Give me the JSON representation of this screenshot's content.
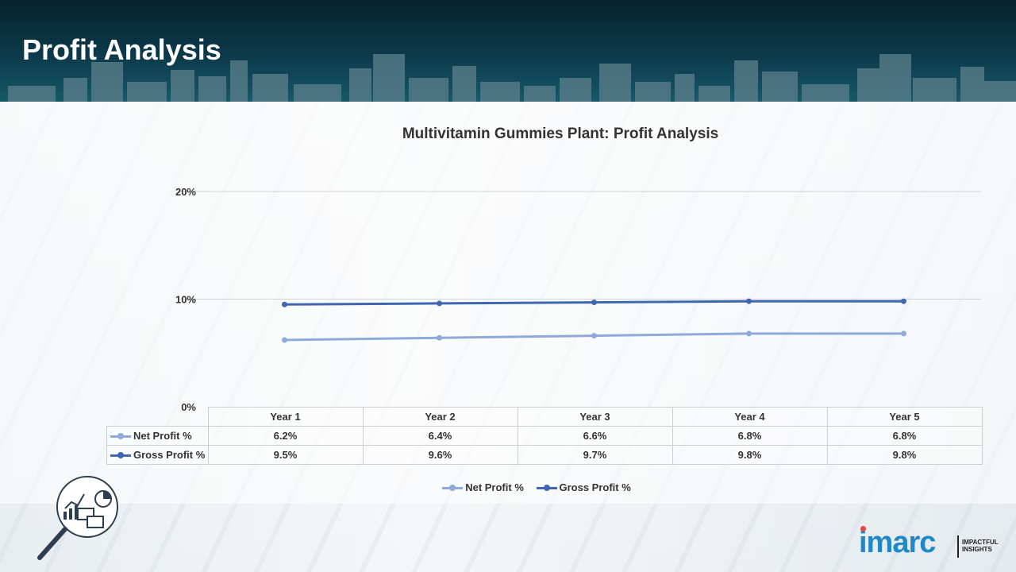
{
  "slide": {
    "title": "Profit Analysis"
  },
  "chart_data": {
    "type": "line",
    "title": "Multivitamin Gummies Plant: Profit Analysis",
    "categories": [
      "Year 1",
      "Year 2",
      "Year 3",
      "Year 4",
      "Year 5"
    ],
    "y_ticks": [
      "0%",
      "10%",
      "20%"
    ],
    "ylim": [
      0,
      20
    ],
    "grid": true,
    "legend_position": "bottom",
    "series": [
      {
        "name": "Net Profit %",
        "values": [
          6.2,
          6.4,
          6.6,
          6.8,
          6.8
        ],
        "labels": [
          "6.2%",
          "6.4%",
          "6.6%",
          "6.8%",
          "6.8%"
        ],
        "color": "#8eaad8"
      },
      {
        "name": "Gross Profit %",
        "values": [
          9.5,
          9.6,
          9.7,
          9.8,
          9.8
        ],
        "labels": [
          "9.5%",
          "9.6%",
          "9.7%",
          "9.8%",
          "9.8%"
        ],
        "color": "#3f66b0"
      }
    ]
  },
  "branding": {
    "logo_text": "imarc",
    "logo_tagline": "IMPACTFUL INSIGHTS",
    "logo_color": "#1e88c8"
  },
  "icons": {
    "badge": "analysis-magnifier-icon"
  }
}
